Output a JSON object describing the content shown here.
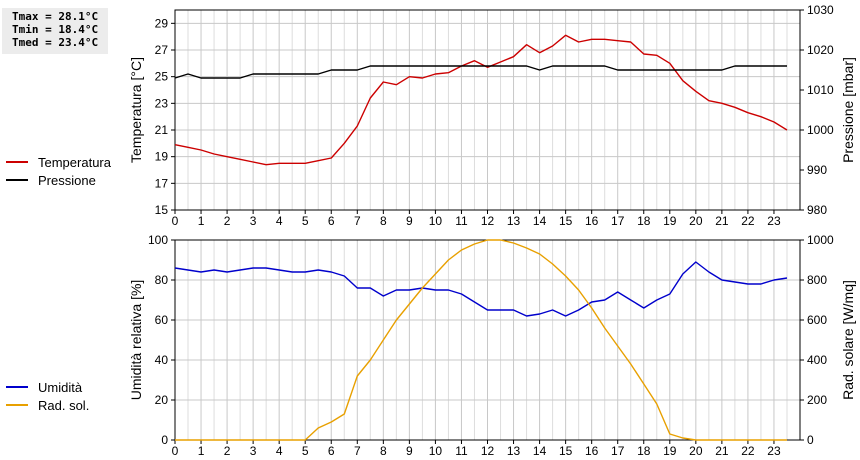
{
  "stats": {
    "tmax": "Tmax = 28.1°C",
    "tmin": "Tmin = 18.4°C",
    "tmed": "Tmed = 23.4°C"
  },
  "chart_data": [
    {
      "type": "line",
      "x_ticks": [
        "0",
        "1",
        "2",
        "3",
        "4",
        "5",
        "6",
        "7",
        "8",
        "9",
        "10",
        "11",
        "12",
        "13",
        "14",
        "15",
        "16",
        "17",
        "18",
        "19",
        "20",
        "21",
        "22",
        "23"
      ],
      "xlim": [
        0,
        24
      ],
      "ylabel": "Temperatura [°C]",
      "ylim": [
        15,
        30
      ],
      "y_ticks": [
        "15",
        "17",
        "19",
        "21",
        "23",
        "25",
        "27",
        "29"
      ],
      "ylabel_right": "Pressione [mbar]",
      "ylim_right": [
        980,
        1030
      ],
      "y_ticks_right": [
        "980",
        "990",
        "1000",
        "1010",
        "1020",
        "1030"
      ],
      "grid": true,
      "legend_placement": "left",
      "series": [
        {
          "name": "Temperatura",
          "axis": "left",
          "color": "#cc0000",
          "x": [
            0,
            0.5,
            1,
            1.5,
            2,
            2.5,
            3,
            3.5,
            4,
            4.5,
            5,
            5.5,
            6,
            6.5,
            7,
            7.5,
            8,
            8.5,
            9,
            9.5,
            10,
            10.5,
            11,
            11.5,
            12,
            12.5,
            13,
            13.5,
            14,
            14.5,
            15,
            15.5,
            16,
            16.5,
            17,
            17.5,
            18,
            18.5,
            19,
            19.5,
            20,
            20.5,
            21,
            21.5,
            22,
            22.5,
            23,
            23.5
          ],
          "y": [
            19.9,
            19.7,
            19.5,
            19.2,
            19.0,
            18.8,
            18.6,
            18.4,
            18.5,
            18.5,
            18.5,
            18.7,
            18.9,
            20.0,
            21.3,
            23.4,
            24.6,
            24.4,
            25.0,
            24.9,
            25.2,
            25.3,
            25.8,
            26.2,
            25.7,
            26.1,
            26.5,
            27.4,
            26.8,
            27.3,
            28.1,
            27.6,
            27.8,
            27.8,
            27.7,
            27.6,
            26.7,
            26.6,
            26.0,
            24.7,
            23.9,
            23.2,
            23.0,
            22.7,
            22.3,
            22.0,
            21.6,
            21.0
          ]
        },
        {
          "name": "Pressione",
          "axis": "right",
          "color": "#000000",
          "x": [
            0,
            0.5,
            1,
            1.5,
            2,
            2.5,
            3,
            3.5,
            4,
            4.5,
            5,
            5.5,
            6,
            6.5,
            7,
            7.5,
            8,
            8.5,
            9,
            9.5,
            10,
            10.5,
            11,
            11.5,
            12,
            12.5,
            13,
            13.5,
            14,
            14.5,
            15,
            15.5,
            16,
            16.5,
            17,
            17.5,
            18,
            18.5,
            19,
            19.5,
            20,
            20.5,
            21,
            21.5,
            22,
            22.5,
            23,
            23.5
          ],
          "y": [
            1013,
            1014,
            1013,
            1013,
            1013,
            1013,
            1014,
            1014,
            1014,
            1014,
            1014,
            1014,
            1015,
            1015,
            1015,
            1016,
            1016,
            1016,
            1016,
            1016,
            1016,
            1016,
            1016,
            1016,
            1016,
            1016,
            1016,
            1016,
            1015,
            1016,
            1016,
            1016,
            1016,
            1016,
            1015,
            1015,
            1015,
            1015,
            1015,
            1015,
            1015,
            1015,
            1015,
            1016,
            1016,
            1016,
            1016,
            1016
          ]
        }
      ]
    },
    {
      "type": "line",
      "x_ticks": [
        "0",
        "1",
        "2",
        "3",
        "4",
        "5",
        "6",
        "7",
        "8",
        "9",
        "10",
        "11",
        "12",
        "13",
        "14",
        "15",
        "16",
        "17",
        "18",
        "19",
        "20",
        "21",
        "22",
        "23"
      ],
      "xlim": [
        0,
        24
      ],
      "ylabel": "Umidità relativa [%]",
      "ylim": [
        0,
        100
      ],
      "y_ticks": [
        "0",
        "20",
        "40",
        "60",
        "80",
        "100"
      ],
      "ylabel_right": "Rad. solare [W/mq]",
      "ylim_right": [
        0,
        1000
      ],
      "y_ticks_right": [
        "0",
        "200",
        "400",
        "600",
        "800",
        "1000"
      ],
      "grid": true,
      "legend_placement": "left",
      "series": [
        {
          "name": "Umidità",
          "axis": "left",
          "color": "#0000cc",
          "x": [
            0,
            0.5,
            1,
            1.5,
            2,
            2.5,
            3,
            3.5,
            4,
            4.5,
            5,
            5.5,
            6,
            6.5,
            7,
            7.5,
            8,
            8.5,
            9,
            9.5,
            10,
            10.5,
            11,
            11.5,
            12,
            12.5,
            13,
            13.5,
            14,
            14.5,
            15,
            15.5,
            16,
            16.5,
            17,
            17.5,
            18,
            18.5,
            19,
            19.5,
            20,
            20.5,
            21,
            21.5,
            22,
            22.5,
            23,
            23.5
          ],
          "y": [
            86,
            85,
            84,
            85,
            84,
            85,
            86,
            86,
            85,
            84,
            84,
            85,
            84,
            82,
            76,
            76,
            72,
            75,
            75,
            76,
            75,
            75,
            73,
            69,
            65,
            65,
            65,
            62,
            63,
            65,
            62,
            65,
            69,
            70,
            74,
            70,
            66,
            70,
            73,
            83,
            89,
            84,
            80,
            79,
            78,
            78,
            80,
            81
          ]
        },
        {
          "name": "Rad. sol.",
          "axis": "right",
          "color": "#e8a000",
          "x": [
            0,
            0.5,
            1,
            1.5,
            2,
            2.5,
            3,
            3.5,
            4,
            4.5,
            5,
            5.5,
            6,
            6.5,
            7,
            7.5,
            8,
            8.5,
            9,
            9.5,
            10,
            10.5,
            11,
            11.5,
            12,
            12.5,
            13,
            13.5,
            14,
            14.5,
            15,
            15.5,
            16,
            16.5,
            17,
            17.5,
            18,
            18.5,
            19,
            19.5,
            20,
            20.5,
            21,
            21.5,
            22,
            22.5,
            23,
            23.5
          ],
          "y": [
            0,
            0,
            0,
            0,
            0,
            0,
            0,
            0,
            0,
            0,
            0,
            60,
            90,
            130,
            320,
            400,
            500,
            600,
            680,
            760,
            830,
            900,
            950,
            980,
            1000,
            1000,
            985,
            960,
            930,
            880,
            820,
            750,
            660,
            560,
            470,
            380,
            280,
            180,
            30,
            10,
            0,
            0,
            0,
            0,
            0,
            0,
            0,
            0
          ]
        }
      ]
    }
  ]
}
